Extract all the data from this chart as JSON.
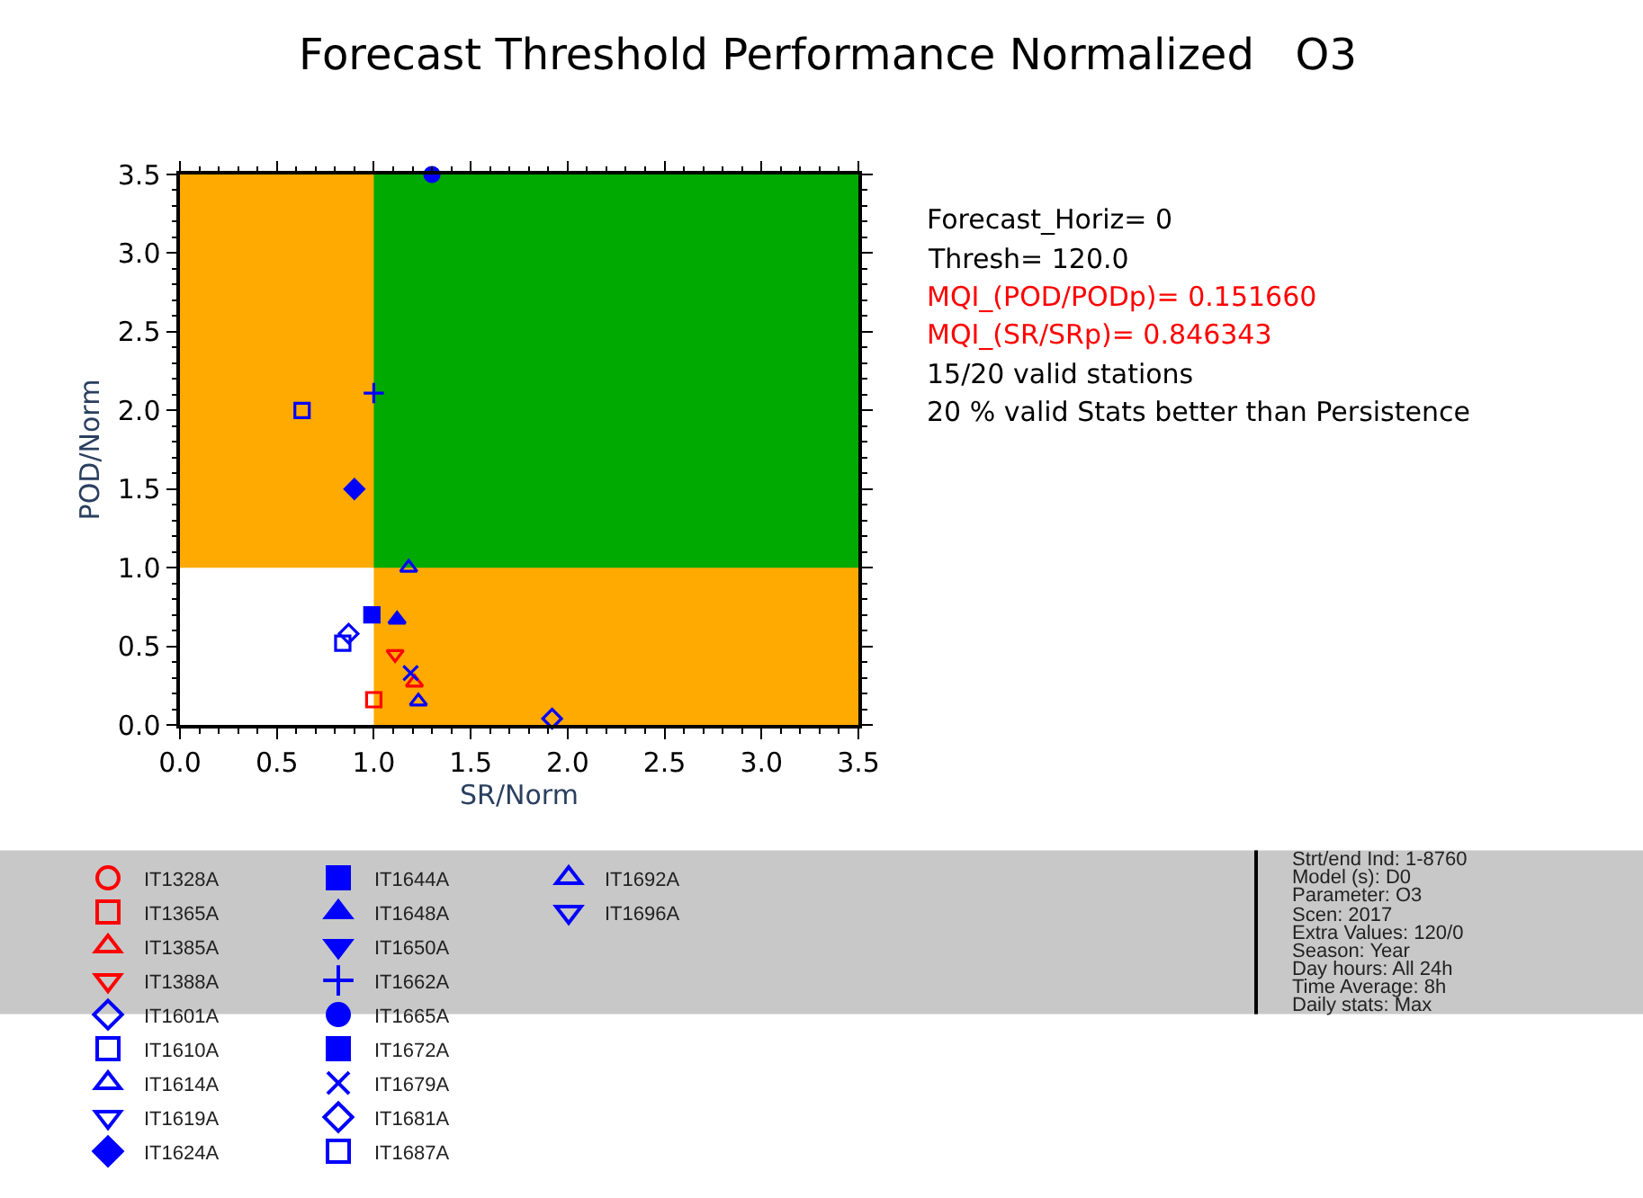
{
  "chart_data": {
    "type": "scatter",
    "title": "Forecast Threshold Performance Normalized   O3",
    "xlabel": "SR/Norm",
    "ylabel": "POD/Norm",
    "xlim": [
      0,
      3.5
    ],
    "ylim": [
      0,
      3.5
    ],
    "xticks": [
      {
        "value": 0,
        "label": "0.0"
      },
      {
        "value": 0.5,
        "label": "0.5"
      },
      {
        "value": 1,
        "label": "1.0"
      },
      {
        "value": 1.5,
        "label": "1.5"
      },
      {
        "value": 2,
        "label": "2.0"
      },
      {
        "value": 2.5,
        "label": "2.5"
      },
      {
        "value": 3,
        "label": "3.0"
      },
      {
        "value": 3.5,
        "label": "3.5"
      }
    ],
    "yticks": [
      {
        "value": 0,
        "label": "0.0"
      },
      {
        "value": 0.5,
        "label": "0.5"
      },
      {
        "value": 1,
        "label": "1.0"
      },
      {
        "value": 1.5,
        "label": "1.5"
      },
      {
        "value": 2,
        "label": "2.0"
      },
      {
        "value": 2.5,
        "label": "2.5"
      },
      {
        "value": 3,
        "label": "3.0"
      },
      {
        "value": 3.5,
        "label": "3.5"
      }
    ],
    "grid": false,
    "legend": "bottom",
    "bands": [
      {
        "axis": "y",
        "from": 1,
        "to": 3.5,
        "color": "#ffaa00"
      },
      {
        "axis": "x",
        "from": 1,
        "to": 3.5,
        "color": "#ffaa00"
      },
      {
        "axis": "x",
        "from": 1,
        "to": 3.5,
        "color": "#00aa00"
      }
    ],
    "series": [
      {
        "name": "IT1328A",
        "color": "#ff0000",
        "marker": "circle-open",
        "x": [
          null
        ],
        "values": [
          null
        ]
      },
      {
        "name": "IT1365A",
        "color": "#ff0000",
        "marker": "square-open",
        "x": [
          1.0
        ],
        "values": [
          0.16
        ]
      },
      {
        "name": "IT1385A",
        "color": "#ff0000",
        "marker": "triangle-open",
        "x": [
          1.21
        ],
        "values": [
          0.27
        ]
      },
      {
        "name": "IT1388A",
        "color": "#ff0000",
        "marker": "triangle-down-open",
        "x": [
          1.11
        ],
        "values": [
          0.45
        ]
      },
      {
        "name": "IT1601A",
        "color": "#0000ff",
        "marker": "diamond-open",
        "x": [
          1.92
        ],
        "values": [
          0.04
        ]
      },
      {
        "name": "IT1610A",
        "color": "#0000ff",
        "marker": "square-open",
        "x": [
          0.63
        ],
        "values": [
          2.0
        ]
      },
      {
        "name": "IT1614A",
        "color": "#0000ff",
        "marker": "triangle-open",
        "x": [
          1.23
        ],
        "values": [
          0.15
        ]
      },
      {
        "name": "IT1619A",
        "color": "#0000ff",
        "marker": "triangle-down-open",
        "x": [
          null
        ],
        "values": [
          null
        ]
      },
      {
        "name": "IT1624A",
        "color": "#0000ff",
        "marker": "diamond",
        "x": [
          0.9
        ],
        "values": [
          1.5
        ]
      },
      {
        "name": "IT1644A",
        "color": "#0000ff",
        "marker": "square",
        "x": [
          0.99
        ],
        "values": [
          0.7
        ]
      },
      {
        "name": "IT1648A",
        "color": "#0000ff",
        "marker": "triangle",
        "x": [
          1.12
        ],
        "values": [
          0.67
        ]
      },
      {
        "name": "IT1650A",
        "color": "#0000ff",
        "marker": "triangle-down",
        "x": [
          null
        ],
        "values": [
          null
        ]
      },
      {
        "name": "IT1662A",
        "color": "#0000ff",
        "marker": "cross",
        "x": [
          1.0
        ],
        "values": [
          2.11
        ]
      },
      {
        "name": "IT1665A",
        "color": "#0000ff",
        "marker": "circle",
        "x": [
          1.3
        ],
        "values": [
          3.5
        ]
      },
      {
        "name": "IT1672A",
        "color": "#0000ff",
        "marker": "square",
        "x": [
          null
        ],
        "values": [
          null
        ]
      },
      {
        "name": "IT1679A",
        "color": "#0000ff",
        "marker": "x",
        "x": [
          1.19
        ],
        "values": [
          0.33
        ]
      },
      {
        "name": "IT1681A",
        "color": "#0000ff",
        "marker": "diamond-open",
        "x": [
          0.87
        ],
        "values": [
          0.58
        ]
      },
      {
        "name": "IT1687A",
        "color": "#0000ff",
        "marker": "square-open",
        "x": [
          0.84
        ],
        "values": [
          0.52
        ]
      },
      {
        "name": "IT1692A",
        "color": "#0000ff",
        "marker": "triangle-open",
        "x": [
          1.18
        ],
        "values": [
          1.0
        ]
      },
      {
        "name": "IT1696A",
        "color": "#0000ff",
        "marker": "triangle-down-open",
        "x": [
          null
        ],
        "values": [
          null
        ]
      }
    ],
    "annotations": [
      "Forecast_Horiz= 0",
      "Thresh= 120.0",
      "MQI_(POD/PODp)= 0.151660",
      "MQI_(SR/SRp)= 0.846343",
      "15/20 valid stations",
      "20 % valid Stats better than Persistence",
      "Strt/end Ind: 1-8760",
      "Model (s): D0",
      "Parameter: O3",
      "Scen: 2017",
      "Extra Values: 120/0",
      "Season: Year",
      "Day hours: All 24h",
      "Time Average: 8h",
      "Daily stats: Max"
    ]
  }
}
